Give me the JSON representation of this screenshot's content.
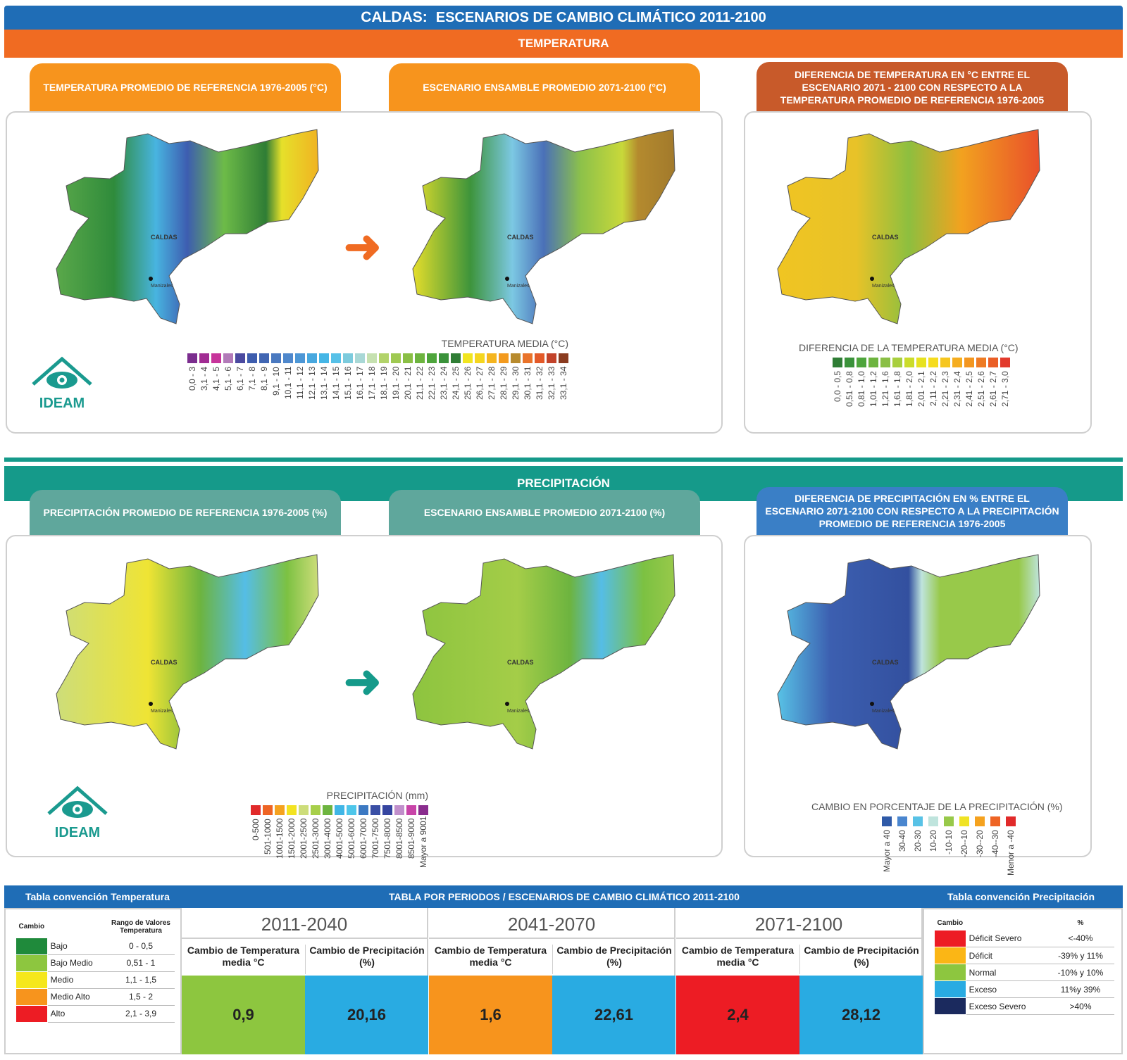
{
  "header": {
    "title": "CALDAS:",
    "subtitle": "ESCENARIOS DE CAMBIO CLIMÁTICO 2011-2100"
  },
  "temperature": {
    "section_title": "TEMPERATURA",
    "tabs": [
      "TEMPERATURA PROMEDIO DE REFERENCIA 1976-2005 (°C)",
      "ESCENARIO ENSAMBLE PROMEDIO 2071-2100  (°C)",
      "DIFERENCIA  DE TEMPERATURA EN  °C ENTRE EL ESCENARIO 2071 - 2100 CON RESPECTO A LA TEMPERATURA PROMEDIO DE REFERENCIA 1976-2005"
    ],
    "legend_title": "TEMPERATURA MEDIA (°C)",
    "legend": [
      {
        "label": "0,0 - 3",
        "color": "#7b2d8e"
      },
      {
        "label": "3,1 - 4",
        "color": "#a12c93"
      },
      {
        "label": "4,1 - 5",
        "color": "#c7349b"
      },
      {
        "label": "5,1 - 6",
        "color": "#b27ab8"
      },
      {
        "label": "6,1 - 7",
        "color": "#4b4aa0"
      },
      {
        "label": "7,1 - 8",
        "color": "#3e5dae"
      },
      {
        "label": "8,1 - 9",
        "color": "#4166b3"
      },
      {
        "label": "9,1 - 10",
        "color": "#4a79c0"
      },
      {
        "label": "10,1 - 11",
        "color": "#4f88cc"
      },
      {
        "label": "11,1 - 12",
        "color": "#4d97d6"
      },
      {
        "label": "12,1 - 13",
        "color": "#48a8df"
      },
      {
        "label": "13,1 - 14",
        "color": "#45b6e6"
      },
      {
        "label": "14,1 - 15",
        "color": "#57c1e8"
      },
      {
        "label": "15,1 - 16",
        "color": "#7ccbdd"
      },
      {
        "label": "16,1 - 17",
        "color": "#a9d8d6"
      },
      {
        "label": "17,1 - 18",
        "color": "#c6e1b0"
      },
      {
        "label": "18,1 - 19",
        "color": "#b2d36a"
      },
      {
        "label": "19,1 - 20",
        "color": "#9fc952"
      },
      {
        "label": "20,1 - 21",
        "color": "#8abf45"
      },
      {
        "label": "21,1 - 22",
        "color": "#6db43f"
      },
      {
        "label": "22,1 - 23",
        "color": "#4ea53c"
      },
      {
        "label": "23,1 - 24",
        "color": "#3a923a"
      },
      {
        "label": "24,1 - 25",
        "color": "#2f7d35"
      },
      {
        "label": "25,1 - 26",
        "color": "#f1e51f"
      },
      {
        "label": "26,1 - 27",
        "color": "#f5d61f"
      },
      {
        "label": "27,1 - 28",
        "color": "#f5b51f"
      },
      {
        "label": "28,1 - 29",
        "color": "#f39a1e"
      },
      {
        "label": "29,1 - 30",
        "color": "#b78a2d"
      },
      {
        "label": "30,1 - 31",
        "color": "#e9732a"
      },
      {
        "label": "31,1 - 32",
        "color": "#e35a28"
      },
      {
        "label": "32,1 - 33",
        "color": "#c2432a"
      },
      {
        "label": "33,1 - 34",
        "color": "#8a3b1f"
      }
    ],
    "diff_legend_title": "DIFERENCIA DE LA  TEMPERATURA MEDIA (°C)",
    "diff_legend": [
      {
        "label": "0,0 - 0,5",
        "color": "#2f7d35"
      },
      {
        "label": "0,51 - 0,8",
        "color": "#3a923a"
      },
      {
        "label": "0,81 - 1,0",
        "color": "#4ea53c"
      },
      {
        "label": "1,01 - 1,2",
        "color": "#6db43f"
      },
      {
        "label": "1,21 - 1,6",
        "color": "#8abf45"
      },
      {
        "label": "1,61 - 1,8",
        "color": "#a8cf3e"
      },
      {
        "label": "1,81 - 2,0",
        "color": "#cbdc2a"
      },
      {
        "label": "2,01 - 2,1",
        "color": "#e7e220"
      },
      {
        "label": "2,11 - 2,2",
        "color": "#f5dc1f"
      },
      {
        "label": "2,21 - 2,3",
        "color": "#f6c61f"
      },
      {
        "label": "2,31 - 2,4",
        "color": "#f5ad1f"
      },
      {
        "label": "2,41 - 2,5",
        "color": "#f3961f"
      },
      {
        "label": "2,51 - 2,6",
        "color": "#ee7b23"
      },
      {
        "label": "2,61 - 2,7",
        "color": "#ea5f27"
      },
      {
        "label": "2,71 - 3,0",
        "color": "#e23a2c"
      }
    ]
  },
  "precipitation": {
    "section_title": "PRECIPITACIÓN",
    "tabs": [
      "PRECIPITACIÓN PROMEDIO DE REFERENCIA 1976-2005 (%)",
      "ESCENARIO ENSAMBLE PROMEDIO 2071-2100 (%)",
      "DIFERENCIA DE PRECIPITACIÓN EN % ENTRE EL ESCENARIO 2071-2100 CON RESPECTO A LA PRECIPITACIÓN PROMEDIO DE REFERENCIA 1976-2005"
    ],
    "legend_title": "PRECIPITACIÓN (mm)",
    "legend": [
      {
        "label": "0-500",
        "color": "#e12a2a"
      },
      {
        "label": "501-1000",
        "color": "#ee6424"
      },
      {
        "label": "1001-1500",
        "color": "#f5a21f"
      },
      {
        "label": "1501-2000",
        "color": "#f3e321"
      },
      {
        "label": "2001-2500",
        "color": "#cddd7a"
      },
      {
        "label": "2501-3000",
        "color": "#a7cf4a"
      },
      {
        "label": "3001-4000",
        "color": "#6db43f"
      },
      {
        "label": "4001-5000",
        "color": "#40b6e6"
      },
      {
        "label": "5001-6000",
        "color": "#4ec6ea"
      },
      {
        "label": "6001-7000",
        "color": "#3c79c2"
      },
      {
        "label": "7001-7500",
        "color": "#3a4fa5"
      },
      {
        "label": "7501-8000",
        "color": "#3545a0"
      },
      {
        "label": "8001-8500",
        "color": "#c18fcb"
      },
      {
        "label": "8501-9000",
        "color": "#c844a8"
      },
      {
        "label": "Mayor a 9001",
        "color": "#8a2d8e"
      }
    ],
    "diff_legend_title": "CAMBIO EN PORCENTAJE DE LA PRECIPITACIÓN (%)",
    "diff_legend": [
      {
        "label": "Mayor a 40",
        "color": "#2f5aa8"
      },
      {
        "label": "30-40",
        "color": "#4a86cf"
      },
      {
        "label": "20-30",
        "color": "#58c2e6"
      },
      {
        "label": "10-20",
        "color": "#bfe4dd"
      },
      {
        "label": "-10-10",
        "color": "#98c94a"
      },
      {
        "label": "-20--10",
        "color": "#f0e324"
      },
      {
        "label": "-30--20",
        "color": "#f5a21f"
      },
      {
        "label": "-40--30",
        "color": "#ee6424"
      },
      {
        "label": "Menor a -40",
        "color": "#e12a2a"
      }
    ]
  },
  "map_labels": {
    "region": "CALDAS",
    "city": "Manizales"
  },
  "logo": {
    "text": "IDEAM"
  },
  "table": {
    "left_title": "Tabla convención Temperatura",
    "center_title": "TABLA POR PERIODOS /  ESCENARIOS DE CAMBIO CLIMÁTICO 2011-2100",
    "right_title": "Tabla convención Precipitación",
    "temp_conv": {
      "col1": "Cambio",
      "col2": "Rango de Valores Temperatura",
      "rows": [
        {
          "label": "Bajo",
          "range": "0 - 0,5",
          "color": "#1f8a3b"
        },
        {
          "label": "Bajo Medio",
          "range": "0,51 - 1",
          "color": "#8dc63f"
        },
        {
          "label": "Medio",
          "range": "1,1 - 1,5",
          "color": "#f5e71c"
        },
        {
          "label": "Medio Alto",
          "range": "1,5 - 2",
          "color": "#f7941d"
        },
        {
          "label": "Alto",
          "range": "2,1 - 3,9",
          "color": "#ed1c24"
        }
      ]
    },
    "precip_conv": {
      "col1": "Cambio",
      "col2": "%",
      "rows": [
        {
          "label": "Déficit Severo",
          "range": "<-40%",
          "color": "#ed1c24"
        },
        {
          "label": "Déficit",
          "range": "-39% y 11%",
          "color": "#fbb615"
        },
        {
          "label": "Normal",
          "range": "-10% y 10%",
          "color": "#8dc63f"
        },
        {
          "label": "Exceso",
          "range": "11%y 39%",
          "color": "#29abe2"
        },
        {
          "label": "Exceso Severo",
          "range": ">40%",
          "color": "#1b2a5e"
        }
      ]
    },
    "col_temp": "Cambio de Temperatura media °C",
    "col_precip": "Cambio de Precipitación (%)",
    "periods": [
      {
        "title": "2011-2040",
        "temp": "0,9",
        "precip": "20,16",
        "temp_color": "#8dc63f",
        "precip_color": "#29abe2"
      },
      {
        "title": "2041-2070",
        "temp": "1,6",
        "precip": "22,61",
        "temp_color": "#f7941d",
        "precip_color": "#29abe2"
      },
      {
        "title": "2071-2100",
        "temp": "2,4",
        "precip": "28,12",
        "temp_color": "#ed1c24",
        "precip_color": "#29abe2"
      }
    ]
  }
}
